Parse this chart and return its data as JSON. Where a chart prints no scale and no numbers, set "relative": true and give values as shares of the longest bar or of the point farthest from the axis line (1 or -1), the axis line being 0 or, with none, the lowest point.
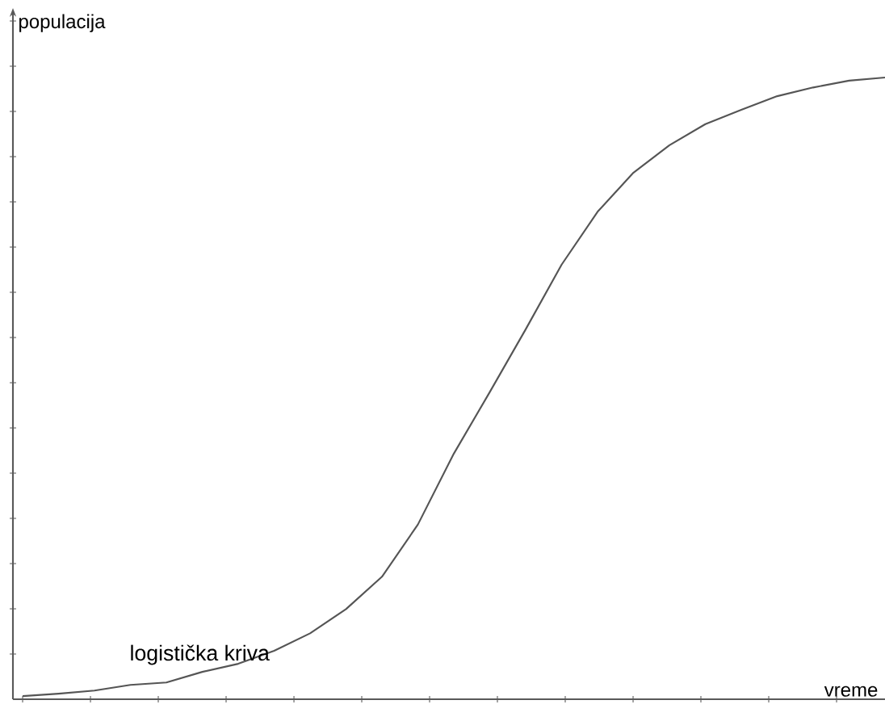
{
  "chart_data": {
    "type": "line",
    "relative": true,
    "xlabel": "vreme",
    "ylabel": "populacija",
    "annotations": [
      "logistička kriva"
    ],
    "categories": [
      null,
      null,
      null,
      null,
      null,
      null,
      null,
      null,
      null,
      null,
      null,
      null,
      null,
      null,
      null,
      null,
      null,
      null,
      null,
      null,
      null,
      null,
      null,
      null,
      null
    ],
    "series": [
      {
        "color": "#555555",
        "values": [
          0.005,
          0.009,
          0.014,
          0.023,
          0.027,
          0.044,
          0.057,
          0.078,
          0.106,
          0.145,
          0.197,
          0.281,
          0.395,
          0.494,
          0.595,
          0.699,
          0.784,
          0.847,
          0.891,
          0.925,
          0.948,
          0.97,
          0.984,
          0.995,
          1
        ]
      }
    ],
    "marker": "none",
    "line_style": "solid"
  }
}
